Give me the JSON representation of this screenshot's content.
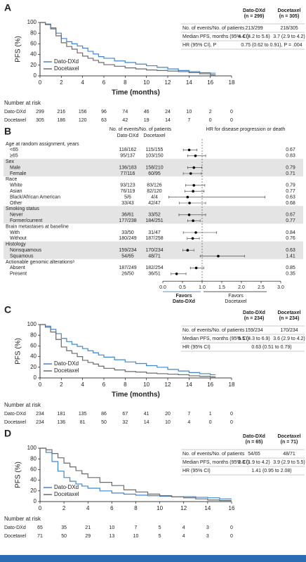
{
  "chart_data": [
    {
      "type": "line",
      "panel": "A",
      "step": true,
      "ylabel": "PFS (%)",
      "xlabel": "Time (months)",
      "ylim": [
        0,
        100
      ],
      "yticks": [
        0,
        20,
        40,
        60,
        80,
        100
      ],
      "xlim": [
        0,
        18
      ],
      "xticks": [
        0,
        2,
        4,
        6,
        8,
        10,
        12,
        14,
        16,
        18
      ],
      "x": [
        0,
        0.5,
        1,
        1.5,
        2,
        2.5,
        3,
        3.5,
        4,
        4.5,
        5,
        5.5,
        6,
        7,
        8,
        9,
        10,
        11,
        12,
        13,
        14,
        15,
        16,
        16.5
      ],
      "series": [
        {
          "name": "Dato-DXd",
          "color": "#3f86cf",
          "values": [
            100,
            97,
            90,
            80,
            70,
            64,
            60,
            56,
            52,
            46,
            41,
            36,
            33,
            28,
            25,
            22,
            19,
            16,
            13,
            10,
            8,
            6,
            5,
            5
          ]
        },
        {
          "name": "Docetaxel",
          "color": "#6a6a6a",
          "values": [
            100,
            96,
            88,
            75,
            62,
            55,
            50,
            43,
            37,
            33,
            29,
            25,
            21,
            18,
            15,
            13,
            11,
            10,
            9,
            8,
            6,
            4,
            2,
            2
          ]
        }
      ],
      "arm_headers": [
        [
          "Dato-DXd",
          "(n = 299)"
        ],
        [
          "Docetaxel",
          "(n = 305)"
        ]
      ],
      "table": [
        [
          "No. of events/No. of patients",
          "213/299",
          "218/305"
        ],
        [
          "Median PFS, months (95% CI)",
          "4.4 (4.2 to 5.6)",
          "3.7 (2.9 to 4.2)"
        ],
        [
          "HR (95% CI), P",
          "0.75 (0.62 to 0.91), P = .004"
        ]
      ],
      "risk_title": "Number at risk",
      "at_risk": [
        [
          299,
          216,
          156,
          96,
          74,
          46,
          24,
          10,
          2,
          0
        ],
        [
          305,
          186,
          120,
          63,
          42,
          19,
          14,
          7,
          0,
          0
        ]
      ]
    },
    {
      "type": "forest",
      "panel": "B",
      "events_header": "No. of events/No. of patients",
      "arms": [
        "Dato-DXd",
        "Docetaxel"
      ],
      "arm_colors": [
        "#3f86cf",
        "#444444"
      ],
      "hr_header": "HR for disease progression or death",
      "xlim": [
        0,
        3
      ],
      "xticks": [
        {
          "value": 0,
          "label": "0.0"
        },
        0.5,
        {
          "value": 1,
          "label": "1.0"
        },
        1.5,
        {
          "value": 2,
          "label": "2.0"
        },
        2.5,
        {
          "value": 3,
          "label": "3.0"
        }
      ],
      "reference_line": 1,
      "favors_left": [
        "Favors",
        "Dato-DXd"
      ],
      "favors_right": [
        "Favors",
        "Docetaxel"
      ],
      "groups": [
        {
          "label": "Age at random assignment, years",
          "shaded": false,
          "rows": [
            {
              "label": "<65",
              "dato": "118/162",
              "doce": "115/155",
              "hr": 0.67,
              "ci": [
                0.52,
                0.87
              ]
            },
            {
              "label": "≥65",
              "dato": "95/137",
              "doce": "103/150",
              "hr": 0.83,
              "ci": [
                0.63,
                1.09
              ]
            }
          ]
        },
        {
          "label": "Sex",
          "shaded": true,
          "rows": [
            {
              "label": "Male",
              "dato": "136/183",
              "doce": "158/210",
              "hr": 0.79,
              "ci": [
                0.63,
                0.99
              ]
            },
            {
              "label": "Female",
              "dato": "77/116",
              "doce": "60/95",
              "hr": 0.71,
              "ci": [
                0.52,
                0.98
              ]
            }
          ]
        },
        {
          "label": "Race",
          "shaded": false,
          "rows": [
            {
              "label": "White",
              "dato": "93/123",
              "doce": "83/126",
              "hr": 0.79,
              "ci": [
                0.58,
                1.07
              ]
            },
            {
              "label": "Asian",
              "dato": "76/119",
              "doce": "82/120",
              "hr": 0.77,
              "ci": [
                0.56,
                1.05
              ]
            },
            {
              "label": "Black/African American",
              "dato": "5/6",
              "doce": "4/4",
              "hr": 0.63,
              "ci": [
                0.15,
                2.6
              ]
            },
            {
              "label": "Other",
              "dato": "33/43",
              "doce": "42/47",
              "hr": 0.68,
              "ci": [
                0.42,
                1.09
              ]
            }
          ]
        },
        {
          "label": "Smoking status",
          "shaded": true,
          "rows": [
            {
              "label": "Never",
              "dato": "36/61",
              "doce": "33/52",
              "hr": 0.67,
              "ci": [
                0.41,
                1.09
              ]
            },
            {
              "label": "Former/current",
              "dato": "177/238",
              "doce": "184/251",
              "hr": 0.77,
              "ci": [
                0.63,
                0.95
              ]
            }
          ]
        },
        {
          "label": "Brain metastases at baseline",
          "shaded": false,
          "rows": [
            {
              "label": "With",
              "dato": "33/50",
              "doce": "31/47",
              "hr": 0.84,
              "ci": [
                0.52,
                1.37
              ]
            },
            {
              "label": "Without",
              "dato": "180/249",
              "doce": "187/258",
              "hr": 0.76,
              "ci": [
                0.62,
                0.93
              ]
            }
          ]
        },
        {
          "label": "Histology",
          "shaded": true,
          "rows": [
            {
              "label": "Nonsquamous",
              "dato": "159/234",
              "doce": "170/234",
              "hr": 0.63,
              "ci": [
                0.51,
                0.79
              ]
            },
            {
              "label": "Squamous",
              "dato": "54/65",
              "doce": "48/71",
              "hr": 1.41,
              "ci": [
                0.95,
                2.08
              ]
            }
          ]
        },
        {
          "label": "Actionable genomic alterationsᵃ",
          "shaded": false,
          "rows": [
            {
              "label": "Absent",
              "dato": "187/249",
              "doce": "182/254",
              "hr": 0.85,
              "ci": [
                0.7,
                1.04
              ]
            },
            {
              "label": "Present",
              "dato": "26/50",
              "doce": "36/51",
              "hr": 0.35,
              "ci": [
                0.21,
                0.59
              ]
            }
          ]
        }
      ]
    },
    {
      "type": "line",
      "panel": "C",
      "step": true,
      "ylabel": "PFS (%)",
      "xlabel": "Time (months)",
      "ylim": [
        0,
        100
      ],
      "yticks": [
        0,
        20,
        40,
        60,
        80,
        100
      ],
      "xlim": [
        0,
        18
      ],
      "xticks": [
        0,
        2,
        4,
        6,
        8,
        10,
        12,
        14,
        16,
        18
      ],
      "x": [
        0,
        0.5,
        1,
        1.5,
        2,
        2.5,
        3,
        3.5,
        4,
        4.5,
        5,
        5.5,
        6,
        7,
        8,
        9,
        10,
        11,
        12,
        13,
        14,
        15,
        16,
        16.5
      ],
      "series": [
        {
          "name": "Dato-DXd",
          "color": "#3f86cf",
          "values": [
            100,
            97,
            91,
            83,
            74,
            68,
            63,
            59,
            55,
            51,
            47,
            43,
            39,
            34,
            30,
            27,
            23,
            20,
            16,
            13,
            10,
            8,
            6,
            6
          ]
        },
        {
          "name": "Docetaxel",
          "color": "#6a6a6a",
          "values": [
            100,
            95,
            86,
            72,
            58,
            51,
            46,
            40,
            33,
            29,
            26,
            22,
            18,
            15,
            12,
            11,
            9,
            8,
            7,
            6,
            4,
            3,
            2,
            2
          ]
        }
      ],
      "arm_headers": [
        [
          "Dato-DXd",
          "(n = 234)"
        ],
        [
          "Docetaxel",
          "(n = 234)"
        ]
      ],
      "table": [
        [
          "No. of events/No. of patients",
          "159/234",
          "170/234"
        ],
        [
          "Median PFS, months (95% CI)",
          "5.5 (4.3 to 6.9)",
          "3.6 (2.9 to 4.2)"
        ],
        [
          "HR (95% CI)",
          "0.63 (0.51 to 0.79)"
        ]
      ],
      "risk_title": "Number at risk",
      "at_risk": [
        [
          234,
          181,
          135,
          86,
          67,
          41,
          20,
          7,
          1,
          0
        ],
        [
          234,
          136,
          81,
          50,
          32,
          14,
          10,
          4,
          0,
          0
        ]
      ]
    },
    {
      "type": "line",
      "panel": "D",
      "step": true,
      "ylabel": "PFS (%)",
      "ylim": [
        0,
        100
      ],
      "yticks": [
        0,
        20,
        40,
        60,
        80,
        100
      ],
      "xlim": [
        0,
        16
      ],
      "xticks": [
        0,
        2,
        4,
        6,
        8,
        10,
        12,
        14,
        16
      ],
      "x": [
        0,
        0.5,
        1,
        1.5,
        2,
        2.5,
        3,
        3.5,
        4,
        5,
        6,
        7,
        8,
        9,
        10,
        11,
        12,
        13,
        14,
        15,
        16
      ],
      "series": [
        {
          "name": "Dato-DXd",
          "color": "#3f86cf",
          "values": [
            100,
            92,
            75,
            57,
            45,
            38,
            33,
            29,
            25,
            20,
            16,
            14,
            12,
            11,
            10,
            9,
            9,
            8,
            7,
            5,
            5
          ]
        },
        {
          "name": "Docetaxel",
          "color": "#6a6a6a",
          "values": [
            100,
            97,
            90,
            82,
            72,
            65,
            58,
            52,
            45,
            36,
            30,
            22,
            18,
            14,
            11,
            9,
            7,
            5,
            3,
            2,
            2
          ]
        }
      ],
      "arm_headers": [
        [
          "Dato-DXd",
          "(n = 65)"
        ],
        [
          "Docetaxel",
          "(n = 71)"
        ]
      ],
      "table": [
        [
          "No. of events/No. of patients",
          "54/65",
          "48/71"
        ],
        [
          "Median PFS, months (95% CI)",
          "2.8 (1.9 to 4.2)",
          "3.9 (2.9 to 5.5)"
        ],
        [
          "HR (95% CI)",
          "1.41 (0.95 to 2.08)"
        ]
      ],
      "risk_title": "Number at risk",
      "at_risk": [
        [
          65,
          35,
          21,
          10,
          7,
          5,
          4,
          3,
          0
        ],
        [
          71,
          50,
          29,
          13,
          10,
          5,
          4,
          3,
          0
        ]
      ]
    }
  ]
}
